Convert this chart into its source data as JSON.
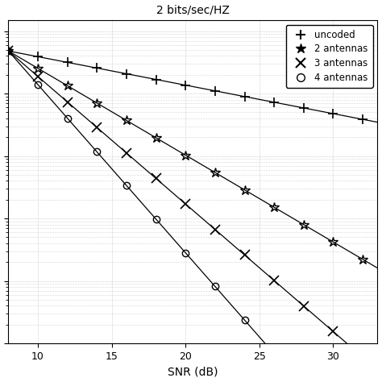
{
  "title": "2 bits/sec/HZ",
  "xlabel": "SNR (dB)",
  "xticks": [
    10,
    15,
    20,
    25,
    30
  ],
  "legend": [
    "uncoded",
    "2 antennas",
    "3 antennas",
    "4 antennas"
  ],
  "background_color": "#ffffff",
  "grid_color": "#b0b0b0",
  "line_color": "#000000",
  "snr_min": 8,
  "snr_max": 33,
  "ylim_min": 1e-05,
  "ylim_max": 1.5,
  "marker_snr_step": 2,
  "uncoded": {
    "a": 0.48,
    "b": 0.105
  },
  "ant2": {
    "a": 0.48,
    "b": 0.32
  },
  "ant3": {
    "a": 0.48,
    "b": 0.47
  },
  "ant4": {
    "a": 0.48,
    "b": 0.62
  }
}
